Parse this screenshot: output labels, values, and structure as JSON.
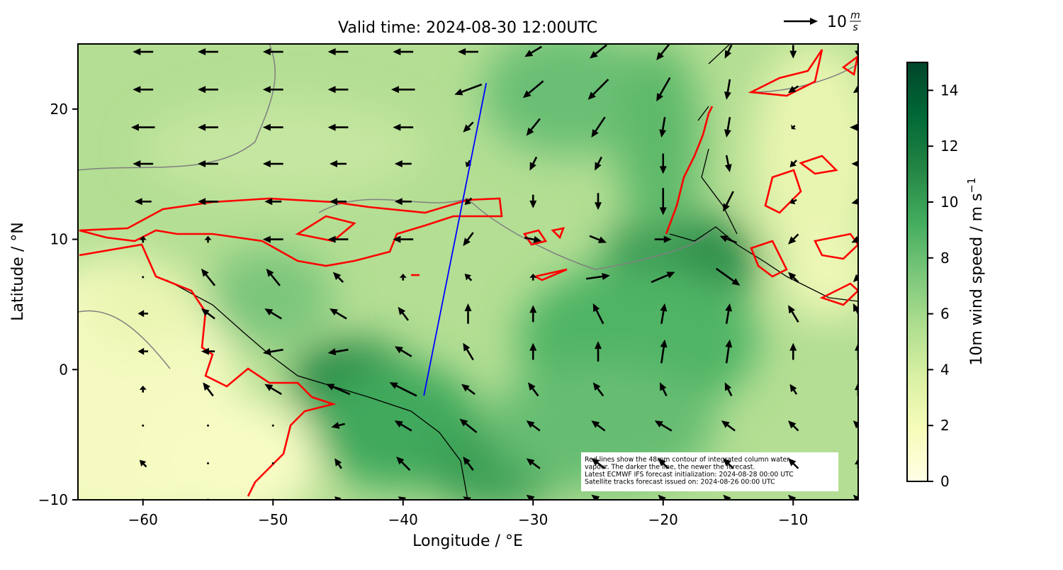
{
  "chart_data": {
    "type": "quiver",
    "title": "Valid time: 2024-08-30 12:00UTC",
    "xlabel": "Longitude / °E",
    "ylabel": "Latitude / °N",
    "xlim": [
      -65,
      -5
    ],
    "ylim": [
      -10,
      25
    ],
    "xticks": [
      {
        "value": -60,
        "label": "−60"
      },
      {
        "value": -50,
        "label": "−50"
      },
      {
        "value": -40,
        "label": "−40"
      },
      {
        "value": -30,
        "label": "−30"
      },
      {
        "value": -20,
        "label": "−20"
      },
      {
        "value": -10,
        "label": "−10"
      }
    ],
    "yticks": [
      {
        "value": -10,
        "label": "−10"
      },
      0,
      10,
      20
    ],
    "wind": {
      "color": "#000000",
      "lons": [
        -60,
        -55,
        -50,
        -45,
        -40,
        -35,
        -30,
        -25,
        -20,
        -15,
        -10,
        -5
      ],
      "lats": [
        24.4,
        21.5,
        18.6,
        15.8,
        12.9,
        10,
        7.1,
        4.3,
        1.4,
        -1.5,
        -4.3,
        -7.2,
        -10
      ],
      "u": [
        [
          -6,
          -6,
          -6,
          -6,
          -6,
          -6,
          -5,
          -5,
          -4,
          -2,
          0,
          0
        ],
        [
          -6,
          -6,
          -6,
          -6,
          -7,
          -8,
          -6,
          -6,
          -4,
          -1,
          -3,
          -3
        ],
        [
          -7,
          -6,
          -6,
          -6,
          -6,
          -3,
          -4,
          -4,
          -1,
          -1,
          -1,
          -5
        ],
        [
          -6,
          -6,
          -6,
          -5,
          -5,
          -1,
          -2,
          -2,
          0,
          1,
          -2,
          -4
        ],
        [
          -5,
          -6,
          -5,
          -5,
          -5,
          -2,
          0,
          0,
          0,
          -3,
          -2,
          -4
        ],
        [
          0,
          0,
          -6,
          -6,
          -6,
          -3,
          5,
          5,
          5,
          -5,
          -3,
          -4
        ],
        [
          0,
          -4,
          -4,
          -3,
          0,
          -2,
          0,
          7,
          7,
          7,
          -3,
          -3
        ],
        [
          -3,
          -4,
          -5,
          -5,
          -3,
          0,
          0,
          -3,
          1,
          1,
          -3,
          -3
        ],
        [
          -3,
          -4,
          -6,
          -6,
          -5,
          -3,
          0,
          0,
          1,
          1,
          0,
          0
        ],
        [
          0,
          -3,
          -5,
          -7,
          -8,
          -4,
          -3,
          -3,
          -2,
          -2,
          -2,
          0
        ],
        [
          0,
          0,
          0,
          -4,
          -5,
          -5,
          -4,
          -4,
          -5,
          -4,
          -3,
          -3
        ],
        [
          -2,
          0,
          0,
          -2,
          -4,
          -3,
          -4,
          -4,
          -3,
          -3,
          -3,
          0
        ],
        [
          0,
          0,
          0,
          -2,
          -3,
          -3,
          -4,
          -4,
          -3,
          -3,
          -3,
          -3
        ]
      ],
      "v": [
        [
          0,
          0,
          0,
          0,
          0,
          0,
          -3,
          -4,
          -5,
          -4,
          -4,
          -3
        ],
        [
          0,
          0,
          0,
          0,
          0,
          -3,
          -5,
          -6,
          -7,
          -6,
          -2,
          -2
        ],
        [
          0,
          0,
          0,
          0,
          0,
          -3,
          -5,
          -6,
          -6,
          -6,
          -1,
          0
        ],
        [
          0,
          0,
          0,
          0,
          0,
          -2,
          -4,
          -4,
          -6,
          -5,
          -2,
          0
        ],
        [
          0,
          0,
          0,
          0,
          0,
          -2,
          -4,
          -5,
          -8,
          -6,
          -1,
          -1
        ],
        [
          2,
          2,
          0,
          0,
          0,
          -4,
          -1,
          -2,
          0,
          2,
          -3,
          -2
        ],
        [
          0,
          5,
          5,
          3,
          2,
          2,
          2,
          1,
          3,
          -5,
          3,
          -3
        ],
        [
          0,
          3,
          3,
          3,
          4,
          6,
          5,
          6,
          6,
          6,
          5,
          6
        ],
        [
          0,
          0,
          -1,
          -1,
          3,
          5,
          5,
          6,
          7,
          7,
          5,
          5
        ],
        [
          2,
          4,
          3,
          3,
          4,
          3,
          4,
          4,
          4,
          4,
          3,
          4
        ],
        [
          0,
          0,
          0,
          -1,
          3,
          4,
          3,
          3,
          3,
          3,
          3,
          3
        ],
        [
          2,
          0,
          0,
          3,
          4,
          4,
          3,
          3,
          3,
          3,
          3,
          3
        ],
        [
          0,
          0,
          0,
          2,
          2,
          2,
          3,
          3,
          3,
          3,
          3,
          3
        ]
      ]
    },
    "track": {
      "color": "#0000ff",
      "lon": [
        -33.6,
        -38.4
      ],
      "lat": [
        22,
        -2
      ]
    },
    "quiver_key": {
      "value": 10,
      "num": "m",
      "den": "s"
    },
    "colorbar": {
      "label": "10m wind speed / m s",
      "label_sup": "−1",
      "lim": [
        0,
        15
      ],
      "ticks": [
        0,
        2,
        4,
        6,
        8,
        10,
        12,
        14
      ],
      "colors": [
        "#ffffe5",
        "#f7fcb9",
        "#d9f0a3",
        "#addd8e",
        "#78c679",
        "#41ab5d",
        "#238443",
        "#006837",
        "#004529"
      ]
    },
    "annotation": [
      "Red lines show the 48mm contour of integrated column water",
      "vapour. The darker the line, the newer the forecast.",
      "Latest ECMWF IFS forecast initialization: 2024-08-28 00:00 UTC",
      "Satellite tracks forecast issued on: 2024-08-26 00:00 UTC"
    ]
  }
}
